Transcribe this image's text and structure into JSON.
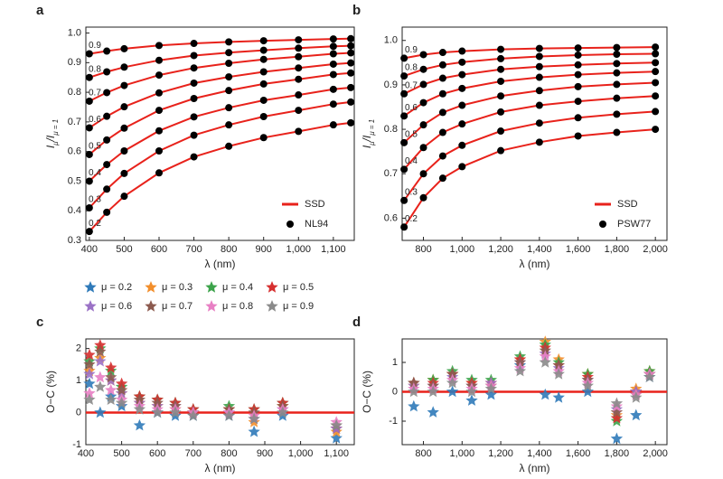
{
  "chart_data": [
    {
      "type": "line",
      "panel": "a",
      "xlabel": "λ (nm)",
      "ylabel": [
        "I",
        "μ",
        "/I",
        "μ = 1"
      ],
      "xlim": [
        390,
        1160
      ],
      "ylim": [
        0.3,
        1.02
      ],
      "xticks": [
        400,
        500,
        600,
        700,
        800,
        900,
        {
          "value": 1000,
          "label": "1,000"
        },
        {
          "value": 1100,
          "label": "1,100"
        }
      ],
      "yticks": [
        0.3,
        0.4,
        0.5,
        0.6,
        0.7,
        0.8,
        0.9,
        {
          "value": 1,
          "label": "1.0"
        }
      ],
      "x": [
        400,
        450,
        500,
        600,
        700,
        800,
        900,
        1000,
        1100,
        1150
      ],
      "legend": [
        {
          "name": "SSD",
          "color": "#e8221b"
        },
        {
          "name": "NL94",
          "color": "#000000"
        }
      ],
      "curves": [
        {
          "label": "0.2",
          "ssd": [
            0.33,
            0.395,
            0.449,
            0.528,
            0.582,
            0.618,
            0.647,
            0.668,
            0.69,
            0.697
          ],
          "obs": [
            0.33,
            0.395,
            0.449,
            0.528,
            0.582,
            0.618,
            0.647,
            0.668,
            0.69,
            0.697
          ]
        },
        {
          "label": "0.3",
          "ssd": [
            0.41,
            0.473,
            0.526,
            0.602,
            0.655,
            0.69,
            0.718,
            0.739,
            0.76,
            0.767
          ],
          "obs": [
            0.41,
            0.473,
            0.526,
            0.602,
            0.655,
            0.69,
            0.718,
            0.739,
            0.76,
            0.767
          ]
        },
        {
          "label": "0.4",
          "ssd": [
            0.5,
            0.556,
            0.602,
            0.67,
            0.717,
            0.748,
            0.773,
            0.791,
            0.81,
            0.816
          ],
          "obs": [
            0.5,
            0.556,
            0.602,
            0.67,
            0.717,
            0.748,
            0.773,
            0.791,
            0.81,
            0.816
          ]
        },
        {
          "label": "0.5",
          "ssd": [
            0.59,
            0.639,
            0.679,
            0.739,
            0.779,
            0.806,
            0.828,
            0.844,
            0.86,
            0.865
          ],
          "obs": [
            0.59,
            0.639,
            0.679,
            0.739,
            0.779,
            0.806,
            0.828,
            0.844,
            0.86,
            0.865
          ]
        },
        {
          "label": "0.6",
          "ssd": [
            0.68,
            0.719,
            0.751,
            0.798,
            0.831,
            0.852,
            0.869,
            0.882,
            0.895,
            0.899
          ],
          "obs": [
            0.68,
            0.719,
            0.751,
            0.798,
            0.831,
            0.852,
            0.869,
            0.882,
            0.895,
            0.899
          ]
        },
        {
          "label": "0.7",
          "ssd": [
            0.77,
            0.799,
            0.823,
            0.858,
            0.882,
            0.898,
            0.911,
            0.92,
            0.93,
            0.933
          ],
          "obs": [
            0.77,
            0.799,
            0.823,
            0.858,
            0.882,
            0.898,
            0.911,
            0.92,
            0.93,
            0.933
          ]
        },
        {
          "label": "0.8",
          "ssd": [
            0.85,
            0.869,
            0.885,
            0.908,
            0.924,
            0.934,
            0.942,
            0.949,
            0.955,
            0.957
          ],
          "obs": [
            0.85,
            0.869,
            0.885,
            0.908,
            0.924,
            0.934,
            0.942,
            0.949,
            0.955,
            0.957
          ]
        },
        {
          "label": "0.9",
          "ssd": [
            0.93,
            0.939,
            0.947,
            0.958,
            0.965,
            0.97,
            0.974,
            0.977,
            0.98,
            0.981
          ],
          "obs": [
            0.93,
            0.939,
            0.947,
            0.958,
            0.965,
            0.97,
            0.974,
            0.977,
            0.98,
            0.981
          ]
        }
      ]
    },
    {
      "type": "line",
      "panel": "b",
      "xlabel": "λ (nm)",
      "ylabel": [
        "I",
        "μ",
        "/I",
        "μ = 1"
      ],
      "xlim": [
        690,
        2060
      ],
      "ylim": [
        0.55,
        1.03
      ],
      "xticks": [
        800,
        {
          "value": 1000,
          "label": "1,000"
        },
        {
          "value": 1200,
          "label": "1,200"
        },
        {
          "value": 1400,
          "label": "1,400"
        },
        {
          "value": 1600,
          "label": "1,600"
        },
        {
          "value": 1800,
          "label": "1,800"
        },
        {
          "value": 2000,
          "label": "2,000"
        }
      ],
      "yticks": [
        0.6,
        0.7,
        0.8,
        0.9,
        {
          "value": 1,
          "label": "1.0"
        }
      ],
      "x": [
        700,
        800,
        900,
        1000,
        1200,
        1400,
        1600,
        1800,
        2000
      ],
      "legend": [
        {
          "name": "SSD",
          "color": "#e8221b"
        },
        {
          "name": "PSW77",
          "color": "#000000"
        }
      ],
      "curves": [
        {
          "label": "0.2",
          "ssd": [
            0.58,
            0.646,
            0.69,
            0.716,
            0.752,
            0.771,
            0.785,
            0.793,
            0.8
          ],
          "obs": [
            0.58,
            0.646,
            0.69,
            0.716,
            0.752,
            0.771,
            0.785,
            0.793,
            0.8
          ]
        },
        {
          "label": "0.3",
          "ssd": [
            0.64,
            0.7,
            0.74,
            0.764,
            0.796,
            0.814,
            0.826,
            0.834,
            0.84
          ],
          "obs": [
            0.64,
            0.7,
            0.74,
            0.764,
            0.796,
            0.814,
            0.826,
            0.834,
            0.84
          ]
        },
        {
          "label": "0.4",
          "ssd": [
            0.71,
            0.759,
            0.793,
            0.812,
            0.839,
            0.854,
            0.863,
            0.87,
            0.875
          ],
          "obs": [
            0.71,
            0.759,
            0.793,
            0.812,
            0.839,
            0.854,
            0.863,
            0.87,
            0.875
          ]
        },
        {
          "label": "0.5",
          "ssd": [
            0.77,
            0.81,
            0.838,
            0.854,
            0.875,
            0.887,
            0.896,
            0.901,
            0.905
          ],
          "obs": [
            0.77,
            0.81,
            0.838,
            0.854,
            0.875,
            0.887,
            0.896,
            0.901,
            0.905
          ]
        },
        {
          "label": "0.6",
          "ssd": [
            0.83,
            0.86,
            0.88,
            0.892,
            0.908,
            0.917,
            0.923,
            0.927,
            0.93
          ],
          "obs": [
            0.83,
            0.86,
            0.88,
            0.892,
            0.908,
            0.917,
            0.923,
            0.927,
            0.93
          ]
        },
        {
          "label": "0.7",
          "ssd": [
            0.88,
            0.901,
            0.915,
            0.923,
            0.935,
            0.941,
            0.945,
            0.948,
            0.95
          ],
          "obs": [
            0.88,
            0.901,
            0.915,
            0.923,
            0.935,
            0.941,
            0.945,
            0.948,
            0.95
          ]
        },
        {
          "label": "0.8",
          "ssd": [
            0.92,
            0.935,
            0.945,
            0.951,
            0.959,
            0.964,
            0.967,
            0.969,
            0.97
          ],
          "obs": [
            0.92,
            0.935,
            0.945,
            0.951,
            0.959,
            0.964,
            0.967,
            0.969,
            0.97
          ]
        },
        {
          "label": "0.9",
          "ssd": [
            0.96,
            0.968,
            0.973,
            0.976,
            0.98,
            0.982,
            0.983,
            0.984,
            0.985
          ],
          "obs": [
            0.96,
            0.968,
            0.973,
            0.976,
            0.98,
            0.982,
            0.983,
            0.984,
            0.985
          ]
        }
      ]
    },
    {
      "type": "scatter",
      "panel": "c",
      "xlabel": "λ (nm)",
      "ylabel": [
        "O−C (%)"
      ],
      "xlim": [
        400,
        1150
      ],
      "ylim": [
        -1,
        2.3
      ],
      "reference_line": 0,
      "reference_color": "#e8221b",
      "xticks": [
        400,
        500,
        600,
        700,
        800,
        900,
        {
          "value": 1000,
          "label": "1,000"
        },
        {
          "value": 1100,
          "label": "1,100"
        }
      ],
      "yticks": [
        -1,
        0,
        1,
        2
      ],
      "x": [
        410,
        440,
        470,
        500,
        550,
        600,
        650,
        700,
        800,
        870,
        950,
        1100
      ],
      "series": [
        {
          "name": "μ = 0.2",
          "color": "#2f7ab9",
          "values": [
            0.9,
            0.0,
            0.5,
            0.2,
            -0.4,
            0.0,
            -0.1,
            -0.1,
            -0.1,
            -0.6,
            -0.1,
            -0.8
          ]
        },
        {
          "name": "μ = 0.3",
          "color": "#f28e2b",
          "values": [
            1.3,
            1.7,
            1.0,
            0.6,
            0.3,
            0.2,
            0.1,
            0.0,
            0.1,
            -0.3,
            0.2,
            -0.6
          ]
        },
        {
          "name": "μ = 0.4",
          "color": "#3ca34a",
          "values": [
            1.6,
            2.0,
            1.3,
            0.8,
            0.5,
            0.4,
            0.3,
            0.1,
            0.2,
            0.1,
            0.3,
            -0.5
          ]
        },
        {
          "name": "μ = 0.5",
          "color": "#d62f2f",
          "values": [
            1.8,
            2.1,
            1.4,
            0.9,
            0.5,
            0.4,
            0.3,
            0.1,
            0.1,
            0.1,
            0.3,
            -0.5
          ]
        },
        {
          "name": "μ = 0.6",
          "color": "#9b72c6",
          "values": [
            1.2,
            1.6,
            1.0,
            0.6,
            0.3,
            0.2,
            0.2,
            0.0,
            0.0,
            -0.2,
            0.1,
            -0.5
          ]
        },
        {
          "name": "μ = 0.7",
          "color": "#8c5a4e",
          "values": [
            1.5,
            1.9,
            1.1,
            0.7,
            0.4,
            0.3,
            0.2,
            0.0,
            0.1,
            0.0,
            0.2,
            -0.4
          ]
        },
        {
          "name": "μ = 0.8",
          "color": "#e87fc4",
          "values": [
            0.6,
            1.1,
            0.7,
            0.4,
            0.2,
            0.1,
            0.1,
            0.0,
            0.0,
            -0.1,
            0.1,
            -0.3
          ]
        },
        {
          "name": "μ = 0.9",
          "color": "#8a8a8a",
          "values": [
            0.4,
            0.8,
            0.4,
            0.3,
            0.1,
            0.0,
            0.0,
            -0.1,
            -0.1,
            -0.2,
            0.0,
            -0.4
          ]
        }
      ]
    },
    {
      "type": "scatter",
      "panel": "d",
      "xlabel": "λ (nm)",
      "ylabel": [
        "O−C (%)"
      ],
      "xlim": [
        690,
        2060
      ],
      "ylim": [
        -1.8,
        1.8
      ],
      "reference_line": 0,
      "reference_color": "#e8221b",
      "xticks": [
        800,
        {
          "value": 1000,
          "label": "1,000"
        },
        {
          "value": 1200,
          "label": "1,200"
        },
        {
          "value": 1400,
          "label": "1,400"
        },
        {
          "value": 1600,
          "label": "1,600"
        },
        {
          "value": 1800,
          "label": "1,800"
        },
        {
          "value": 2000,
          "label": "2,000"
        }
      ],
      "yticks": [
        -1,
        0,
        1
      ],
      "x": [
        750,
        850,
        950,
        1050,
        1150,
        1300,
        1430,
        1500,
        1650,
        1800,
        1900,
        1970
      ],
      "series": [
        {
          "color": "#2f7ab9",
          "values": [
            -0.5,
            -0.7,
            0.0,
            -0.3,
            -0.1,
            0.9,
            -0.1,
            -0.2,
            0.0,
            -1.6,
            -0.8,
            0.5
          ]
        },
        {
          "color": "#f28e2b",
          "values": [
            0.2,
            0.4,
            0.6,
            0.3,
            0.3,
            1.1,
            1.7,
            1.1,
            0.6,
            -0.8,
            0.1,
            0.7
          ]
        },
        {
          "color": "#3ca34a",
          "values": [
            0.3,
            0.4,
            0.7,
            0.4,
            0.4,
            1.2,
            1.6,
            1.0,
            0.6,
            -1.0,
            0.0,
            0.7
          ]
        },
        {
          "color": "#d62f2f",
          "values": [
            0.3,
            0.3,
            0.6,
            0.3,
            0.3,
            1.1,
            1.5,
            0.9,
            0.5,
            -0.9,
            0.0,
            0.6
          ]
        },
        {
          "color": "#9b72c6",
          "values": [
            0.2,
            0.2,
            0.5,
            0.2,
            0.3,
            1.0,
            1.3,
            0.8,
            0.4,
            -0.6,
            0.0,
            0.6
          ]
        },
        {
          "color": "#8c5a4e",
          "values": [
            0.3,
            0.2,
            0.6,
            0.2,
            0.2,
            1.0,
            1.4,
            0.9,
            0.4,
            -0.7,
            -0.1,
            0.6
          ]
        },
        {
          "color": "#e87fc4",
          "values": [
            0.1,
            0.1,
            0.4,
            0.1,
            0.2,
            0.8,
            1.2,
            0.7,
            0.3,
            -0.5,
            -0.1,
            0.6
          ]
        },
        {
          "color": "#8a8a8a",
          "values": [
            0.0,
            0.0,
            0.3,
            0.0,
            0.1,
            0.7,
            1.0,
            0.6,
            0.2,
            -0.4,
            -0.2,
            0.5
          ]
        }
      ]
    }
  ]
}
